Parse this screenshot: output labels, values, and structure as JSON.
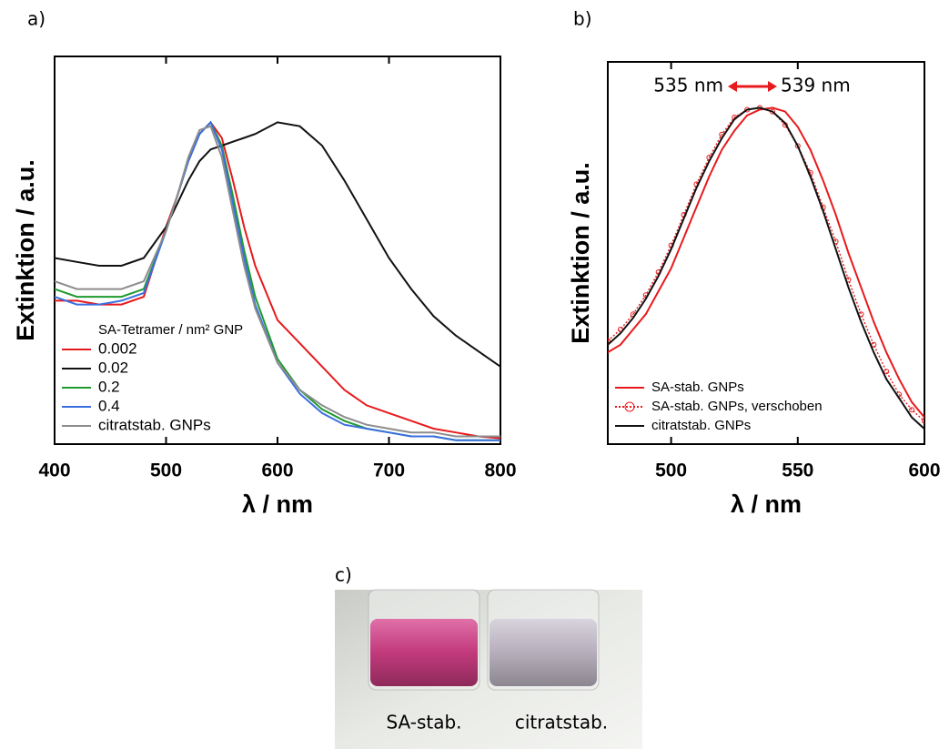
{
  "chart_data": [
    {
      "type": "line",
      "panel_label": "a)",
      "xlabel": "λ / nm",
      "ylabel": "Extinktion / a.u.",
      "xlim": [
        400,
        800
      ],
      "xticks": [
        400,
        500,
        600,
        700,
        800
      ],
      "ylim": [
        0,
        1
      ],
      "legend_title": "SA-Tetramer / nm² GNP",
      "legend": "lower left",
      "x": [
        400,
        420,
        440,
        460,
        480,
        500,
        510,
        520,
        530,
        540,
        550,
        560,
        570,
        580,
        600,
        620,
        640,
        660,
        680,
        700,
        720,
        740,
        760,
        780,
        800
      ],
      "series": [
        {
          "name": "0.002",
          "color": "#e8191c",
          "values": [
            0.37,
            0.37,
            0.36,
            0.36,
            0.38,
            0.56,
            0.64,
            0.73,
            0.8,
            0.83,
            0.79,
            0.68,
            0.56,
            0.46,
            0.32,
            0.26,
            0.2,
            0.14,
            0.1,
            0.08,
            0.06,
            0.04,
            0.03,
            0.02,
            0.015
          ]
        },
        {
          "name": "0.02",
          "color": "#111111",
          "values": [
            0.48,
            0.47,
            0.46,
            0.46,
            0.48,
            0.56,
            0.62,
            0.68,
            0.73,
            0.76,
            0.77,
            0.78,
            0.79,
            0.8,
            0.83,
            0.82,
            0.77,
            0.68,
            0.58,
            0.48,
            0.4,
            0.33,
            0.28,
            0.24,
            0.2
          ]
        },
        {
          "name": "0.2",
          "color": "#1f9a2e",
          "values": [
            0.4,
            0.38,
            0.38,
            0.38,
            0.4,
            0.55,
            0.64,
            0.73,
            0.8,
            0.83,
            0.77,
            0.64,
            0.5,
            0.38,
            0.22,
            0.14,
            0.09,
            0.06,
            0.04,
            0.03,
            0.02,
            0.02,
            0.01,
            0.01,
            0.01
          ]
        },
        {
          "name": "0.4",
          "color": "#3b6fe0",
          "values": [
            0.38,
            0.36,
            0.36,
            0.37,
            0.39,
            0.55,
            0.64,
            0.73,
            0.8,
            0.83,
            0.76,
            0.62,
            0.48,
            0.36,
            0.21,
            0.13,
            0.08,
            0.05,
            0.04,
            0.03,
            0.02,
            0.02,
            0.01,
            0.01,
            0.01
          ]
        },
        {
          "name": "citratstab. GNPs",
          "color": "#8c8c8c",
          "values": [
            0.42,
            0.4,
            0.4,
            0.4,
            0.42,
            0.55,
            0.64,
            0.74,
            0.81,
            0.82,
            0.74,
            0.6,
            0.46,
            0.35,
            0.21,
            0.14,
            0.1,
            0.07,
            0.05,
            0.04,
            0.03,
            0.03,
            0.02,
            0.02,
            0.02
          ]
        }
      ]
    },
    {
      "type": "line",
      "panel_label": "b)",
      "xlabel": "λ / nm",
      "ylabel": "Extinktion / a.u.",
      "xlim": [
        475,
        600
      ],
      "xticks": [
        500,
        550,
        600
      ],
      "ylim": [
        0,
        1
      ],
      "legend": "lower left",
      "annotations": [
        "535 nm",
        "539 nm"
      ],
      "x": [
        475,
        480,
        485,
        490,
        495,
        500,
        505,
        510,
        515,
        520,
        525,
        530,
        535,
        540,
        545,
        550,
        555,
        560,
        565,
        570,
        575,
        580,
        585,
        590,
        595,
        600
      ],
      "series": [
        {
          "name": "SA-stab. GNPs",
          "color": "#e8191c",
          "linestyle": "solid",
          "values": [
            0.24,
            0.26,
            0.3,
            0.34,
            0.4,
            0.46,
            0.54,
            0.62,
            0.7,
            0.77,
            0.82,
            0.86,
            0.875,
            0.88,
            0.87,
            0.83,
            0.77,
            0.69,
            0.6,
            0.5,
            0.41,
            0.32,
            0.24,
            0.17,
            0.11,
            0.07
          ]
        },
        {
          "name": "SA-stab. GNPs, verschoben",
          "color": "#e8191c",
          "linestyle": "dotted",
          "marker": "circle",
          "values": [
            0.27,
            0.3,
            0.34,
            0.39,
            0.45,
            0.52,
            0.6,
            0.68,
            0.75,
            0.81,
            0.855,
            0.875,
            0.88,
            0.87,
            0.835,
            0.78,
            0.71,
            0.62,
            0.53,
            0.43,
            0.34,
            0.26,
            0.19,
            0.13,
            0.09,
            0.06
          ]
        },
        {
          "name": "citratstab. GNPs",
          "color": "#111111",
          "linestyle": "solid",
          "values": [
            0.26,
            0.29,
            0.33,
            0.38,
            0.44,
            0.51,
            0.59,
            0.67,
            0.74,
            0.8,
            0.85,
            0.875,
            0.88,
            0.87,
            0.84,
            0.78,
            0.7,
            0.61,
            0.51,
            0.41,
            0.32,
            0.24,
            0.17,
            0.12,
            0.07,
            0.04
          ]
        }
      ]
    }
  ],
  "photo": {
    "panel_label": "c)",
    "labels": [
      "SA-stab.",
      "citratstab."
    ]
  }
}
